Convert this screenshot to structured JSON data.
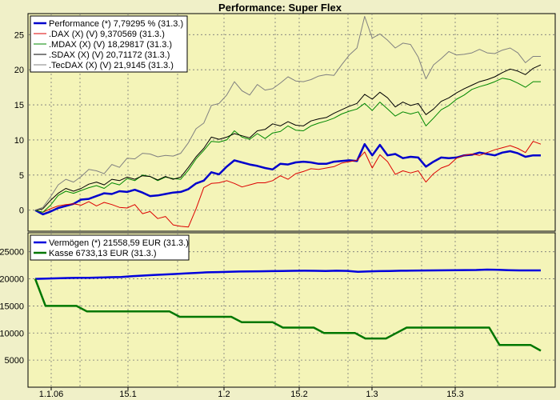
{
  "chart_data": [
    {
      "type": "line",
      "title": "Performance: Super Flex",
      "xlabel": "",
      "ylabel": "",
      "ylim": [
        -3,
        28
      ],
      "yticks": [
        0,
        5,
        10,
        15,
        20,
        25
      ],
      "grid": true,
      "legend_position": "top-left",
      "x_tick_labels": [
        "1.1.06",
        "15.1",
        "1.2",
        "15.2",
        "1.3",
        "15.3"
      ],
      "series": [
        {
          "name": "Performance (*) 7,79295 % (31.3.)",
          "color": "#0000cc",
          "values": [
            0,
            -0.6,
            -0.2,
            0.3,
            0.6,
            0.9,
            1.5,
            1.6,
            2.0,
            2.4,
            2.3,
            2.7,
            2.6,
            2.9,
            2.5,
            2.0,
            2.1,
            2.3,
            2.5,
            2.6,
            3.0,
            3.8,
            4.2,
            5.4,
            5.1,
            6.2,
            7.1,
            6.8,
            6.5,
            6.3,
            6.0,
            5.8,
            6.6,
            6.5,
            6.8,
            6.9,
            6.8,
            6.6,
            6.6,
            6.9,
            7.0,
            7.1,
            7.0,
            9.4,
            7.8,
            9.3,
            7.8,
            8.0,
            7.4,
            7.6,
            7.5,
            6.2,
            6.9,
            7.5,
            7.4,
            7.5,
            7.8,
            7.9,
            8.2,
            8.0,
            7.8,
            8.2,
            8.4,
            8.1,
            7.6,
            7.8,
            7.8
          ]
        },
        {
          "name": ".DAX (X) (V) 9,370569 (31.3.)",
          "color": "#dd0000",
          "values": [
            0,
            -0.3,
            0.2,
            0.6,
            0.8,
            0.9,
            0.7,
            1.2,
            0.6,
            1.1,
            0.8,
            0.4,
            0.3,
            0.8,
            -0.5,
            -0.2,
            -1.2,
            -0.9,
            -2.1,
            -2.3,
            -2.4,
            0.2,
            3.2,
            3.8,
            3.9,
            4.2,
            3.8,
            3.3,
            3.6,
            3.9,
            3.9,
            4.2,
            4.9,
            4.4,
            5.2,
            5.5,
            5.9,
            5.8,
            6.0,
            6.2,
            6.7,
            6.9,
            7.1,
            8.3,
            6.0,
            7.9,
            6.9,
            5.1,
            5.6,
            5.3,
            5.6,
            4.0,
            5.2,
            6.0,
            6.4,
            7.4,
            7.8,
            8.0,
            7.8,
            8.2,
            8.6,
            8.9,
            9.2,
            8.8,
            8.2,
            9.8,
            9.4
          ]
        },
        {
          "name": ".MDAX (X) (V) 18,29817 (31.3.)",
          "color": "#008800",
          "values": [
            0,
            -0.3,
            0.7,
            2.1,
            2.7,
            2.4,
            2.8,
            3.2,
            3.5,
            3.1,
            3.9,
            3.6,
            4.5,
            4.2,
            5.0,
            4.8,
            4.2,
            4.7,
            4.5,
            4.4,
            5.7,
            7.3,
            8.5,
            9.8,
            9.7,
            10.0,
            11.3,
            10.4,
            10.1,
            10.9,
            10.2,
            11.0,
            11.2,
            12.0,
            11.4,
            11.3,
            12.0,
            12.4,
            12.7,
            13.1,
            13.7,
            14.1,
            14.4,
            15.2,
            14.2,
            15.4,
            14.4,
            13.4,
            14.0,
            13.7,
            14.0,
            12.0,
            13.1,
            14.3,
            14.9,
            15.8,
            16.4,
            17.2,
            17.6,
            17.9,
            18.3,
            18.8,
            18.6,
            18.1,
            17.5,
            18.3,
            18.3
          ]
        },
        {
          "name": ".SDAX (X) (V) 20,71172 (31.3.)",
          "color": "#000000",
          "values": [
            0,
            0.2,
            1.4,
            2.4,
            3.1,
            2.7,
            3.1,
            3.7,
            4.0,
            3.6,
            4.4,
            4.2,
            4.7,
            4.4,
            4.9,
            4.8,
            4.3,
            4.8,
            4.4,
            4.7,
            6.1,
            7.6,
            8.8,
            10.4,
            10.1,
            10.4,
            10.9,
            10.6,
            10.3,
            11.3,
            11.5,
            12.3,
            12.0,
            12.6,
            12.1,
            12.0,
            12.7,
            13.0,
            13.2,
            13.8,
            14.3,
            14.8,
            15.2,
            16.5,
            15.8,
            16.8,
            16.0,
            14.7,
            15.4,
            14.9,
            15.2,
            13.6,
            14.4,
            15.5,
            16.0,
            16.7,
            17.3,
            17.8,
            18.3,
            18.6,
            19.0,
            19.6,
            20.1,
            19.8,
            19.3,
            20.2,
            20.7
          ]
        },
        {
          "name": ".TecDAX (X) (V) 21,9145 (31.3.)",
          "color": "#808080",
          "values": [
            0,
            0.4,
            1.9,
            3.6,
            4.4,
            4.0,
            4.8,
            5.8,
            5.6,
            5.2,
            6.5,
            6.1,
            7.4,
            7.3,
            8.1,
            8.0,
            7.6,
            7.8,
            7.7,
            8.1,
            9.6,
            11.6,
            12.4,
            14.9,
            15.2,
            16.4,
            18.3,
            17.0,
            16.4,
            17.9,
            17.1,
            17.3,
            18.1,
            19.0,
            18.4,
            18.3,
            18.6,
            19.1,
            19.3,
            19.2,
            20.7,
            22.1,
            23.1,
            27.6,
            24.5,
            25.1,
            24.2,
            23.1,
            23.8,
            23.6,
            21.8,
            18.7,
            20.7,
            21.6,
            22.6,
            22.1,
            22.2,
            22.4,
            22.9,
            22.4,
            22.3,
            22.8,
            23.1,
            22.4,
            21.0,
            21.9,
            21.9
          ]
        }
      ]
    },
    {
      "type": "line",
      "title": "",
      "xlabel": "",
      "ylabel": "",
      "ylim": [
        0,
        28500
      ],
      "yticks": [
        5000,
        10000,
        15000,
        20000,
        25000
      ],
      "grid": true,
      "legend_position": "top-left",
      "x_tick_labels": [
        "1.1.06",
        "15.1",
        "1.2",
        "15.2",
        "1.3",
        "15.3"
      ],
      "series": [
        {
          "name": "Vermögen (*) 21558,59 EUR (31.3.)",
          "color": "#0000dd",
          "values": [
            20000,
            20050,
            20100,
            20150,
            20180,
            20200,
            20250,
            20300,
            20350,
            20500,
            20600,
            20700,
            20800,
            20900,
            21000,
            21100,
            21200,
            21250,
            21300,
            21350,
            21380,
            21400,
            21420,
            21450,
            21480,
            21500,
            21480,
            21450,
            21500,
            21470,
            21300,
            21380,
            21420,
            21460,
            21500,
            21520,
            21540,
            21560,
            21580,
            21600,
            21620,
            21640,
            21700,
            21680,
            21600,
            21560,
            21560,
            21558.59
          ]
        },
        {
          "name": "Kasse 6733,13 EUR (31.3.)",
          "color": "#007700",
          "values": [
            20000,
            15000,
            15000,
            15000,
            15000,
            14000,
            14000,
            14000,
            14000,
            14000,
            14000,
            14000,
            14000,
            14000,
            13000,
            13000,
            13000,
            13000,
            13000,
            13000,
            12000,
            12000,
            12000,
            12000,
            11000,
            11000,
            11000,
            11000,
            10000,
            10000,
            10000,
            10000,
            9000,
            9000,
            9000,
            10000,
            11000,
            11000,
            11000,
            11000,
            11000,
            11000,
            11000,
            11000,
            11000,
            7800,
            7800,
            7800,
            7800,
            6733.13
          ]
        }
      ]
    }
  ]
}
